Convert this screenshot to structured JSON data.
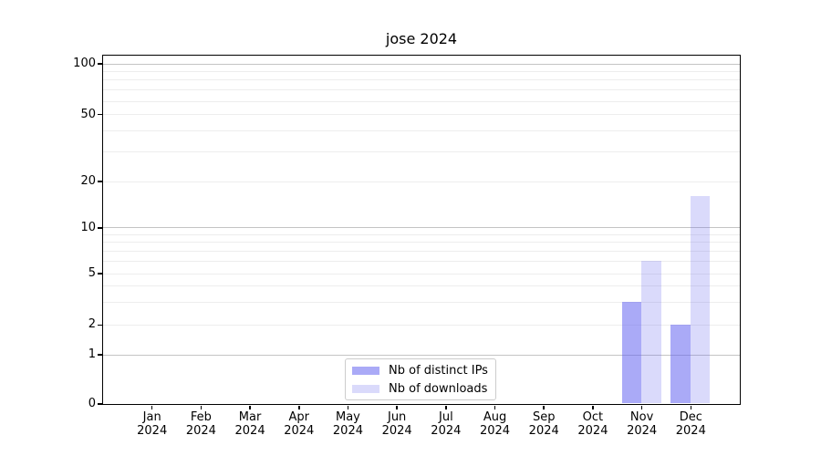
{
  "title": "jose 2024",
  "axes": {
    "months": [
      "Jan",
      "Feb",
      "Mar",
      "Apr",
      "May",
      "Jun",
      "Jul",
      "Aug",
      "Sep",
      "Oct",
      "Nov",
      "Dec"
    ],
    "year": "2024",
    "y_tick_labels": [
      "0",
      "1",
      "2",
      "5",
      "10",
      "20",
      "50",
      "100"
    ]
  },
  "legend": {
    "items": [
      {
        "label": "Nb of distinct IPs",
        "color": "rgba(100,100,240,0.55)"
      },
      {
        "label": "Nb of downloads",
        "color": "rgba(100,100,240,0.24)"
      }
    ]
  },
  "colors": {
    "bar_distinct_ips": "rgba(100,100,240,0.55)",
    "bar_downloads": "rgba(100,100,240,0.24)",
    "grid_major": "#c4c4c4",
    "grid_minor": "#ededed",
    "axis": "#000000",
    "legend_border": "#cccccc"
  },
  "chart_data": {
    "type": "bar",
    "title": "jose 2024",
    "categories": [
      "Jan 2024",
      "Feb 2024",
      "Mar 2024",
      "Apr 2024",
      "May 2024",
      "Jun 2024",
      "Jul 2024",
      "Aug 2024",
      "Sep 2024",
      "Oct 2024",
      "Nov 2024",
      "Dec 2024"
    ],
    "series": [
      {
        "name": "Nb of distinct IPs",
        "values": [
          0,
          0,
          0,
          0,
          0,
          0,
          0,
          0,
          0,
          0,
          3,
          2
        ]
      },
      {
        "name": "Nb of downloads",
        "values": [
          0,
          0,
          0,
          0,
          0,
          0,
          0,
          0,
          0,
          0,
          6,
          16
        ]
      }
    ],
    "y_ticks": [
      0,
      1,
      2,
      5,
      10,
      20,
      50,
      100
    ],
    "y_major_gridlines": [
      1,
      10,
      100
    ],
    "y_minor_gridlines": [
      2,
      3,
      4,
      5,
      6,
      7,
      8,
      9,
      20,
      30,
      40,
      50,
      60,
      70,
      80,
      90
    ],
    "y_scale": "symlog-like (log above 1, compressed linear segment 0-1)",
    "ylim": [
      0,
      112
    ],
    "xlabel": "",
    "ylabel": "",
    "grid": "horizontal only",
    "legend_position": "lower center"
  }
}
